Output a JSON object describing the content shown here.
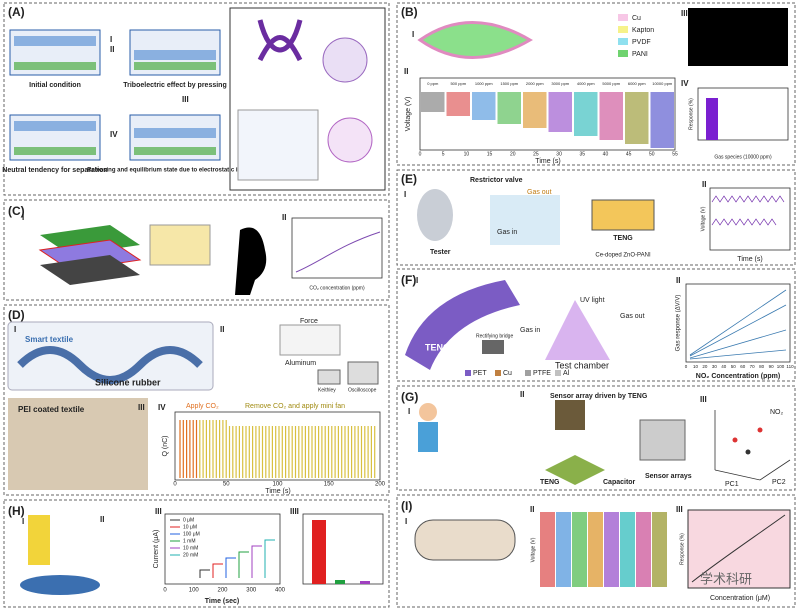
{
  "panel_a": {
    "label": "(A)",
    "steps": [
      "Initial condition",
      "Triboelectric effect by pressing",
      "Releasing and equilibrium state due to electrostatic induction",
      "Neutral tendency for separation"
    ],
    "numerals": [
      "I",
      "II",
      "III",
      "IV"
    ]
  },
  "panel_b": {
    "label": "(B)",
    "legend": [
      "Cu",
      "Kapton",
      "PVDF",
      "PANI"
    ],
    "numerals": [
      "I",
      "II",
      "III",
      "IV"
    ],
    "ylabel": "Voltage (V)",
    "xlabel": "Time (s)",
    "xticks": [
      "0",
      "5",
      "10",
      "15",
      "20",
      "25",
      "30",
      "35",
      "40",
      "45",
      "50",
      "55"
    ],
    "concentrations": [
      "0 ppm",
      "500 ppm",
      "1000 ppm",
      "1500 ppm",
      "2000 ppm",
      "3000 ppm",
      "4000 ppm",
      "5000 ppm",
      "6000 ppm",
      "10000 ppm"
    ],
    "inset_ylabel": "Response (%)",
    "inset_xlabel": "Gas species (10000 ppm)"
  },
  "panel_c": {
    "label": "(C)",
    "numerals": [
      "I",
      "II"
    ],
    "xlabel": "CO₂ concentration (ppm)"
  },
  "panel_d": {
    "label": "(D)",
    "numerals": [
      "I",
      "II",
      "III",
      "IV"
    ],
    "texts": [
      "Smart textile",
      "Silicone rubber",
      "PEI coated textile",
      "Force",
      "Aluminum",
      "Keithley",
      "Oscilloscope"
    ],
    "annotations": [
      "Apply CO₂",
      "Remove CO₂ and apply mini fan"
    ],
    "ylabel": "Q (nC)",
    "xlabel": "Time (s)",
    "xticks": [
      "0",
      "50",
      "100",
      "150",
      "200"
    ]
  },
  "panel_e": {
    "label": "(E)",
    "numerals": [
      "I",
      "II"
    ],
    "texts": [
      "Restrictor valve",
      "Gas out",
      "Gas in",
      "Tester",
      "TENG",
      "Ce-doped ZnO-PANI"
    ],
    "ylabel": "Voltage (V)",
    "xlabel": "Time (s)"
  },
  "panel_f": {
    "label": "(F)",
    "numerals": [
      "I",
      "II"
    ],
    "texts": [
      "UV light",
      "Gas in",
      "Gas out",
      "Rectifying bridge",
      "TENG",
      "Test chamber"
    ],
    "materials": [
      "PET",
      "Cu",
      "PTFE",
      "Al"
    ],
    "ylabel": "Gas response (ΔV/V)",
    "xlabel": "NO₂ Concentration (ppm)",
    "xticks": [
      "0",
      "10",
      "20",
      "30",
      "40",
      "50",
      "60",
      "70",
      "80",
      "90",
      "100",
      "110"
    ]
  },
  "panel_g": {
    "label": "(G)",
    "numerals": [
      "I",
      "II",
      "III"
    ],
    "texts": [
      "Sensor array driven by TENG",
      "TENG",
      "Capacitor",
      "Sensor arrays",
      "NO₂",
      "PC1",
      "PC2"
    ]
  },
  "panel_h": {
    "label": "(H)",
    "numerals": [
      "I",
      "II",
      "III",
      "IIII"
    ],
    "legend": [
      "0 μM",
      "10 μM",
      "100 μM",
      "1 mM",
      "10 mM",
      "20 mM"
    ],
    "ylabel": "Current (μA)",
    "xlabel": "Time (sec)",
    "xticks": [
      "0",
      "100",
      "200",
      "300",
      "400"
    ]
  },
  "panel_i": {
    "label": "(I)",
    "numerals": [
      "I",
      "II",
      "III"
    ],
    "ylabel": "Voltage (V)",
    "ylabel2": "Response (%)",
    "xlabel": "Concentration (μM)"
  },
  "watermark": "学术科研"
}
